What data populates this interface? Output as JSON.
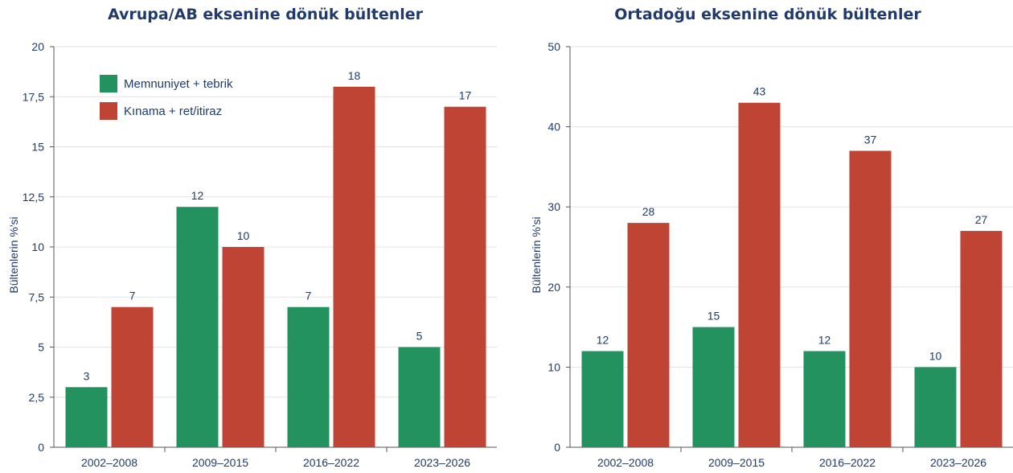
{
  "colors": {
    "green": "#24925e",
    "red": "#c04434",
    "text": "#1f3a6b"
  },
  "chart_data": [
    {
      "type": "bar",
      "title": "Avrupa/AB eksenine dönük bültenler",
      "ylabel": "Bültenlerin %'si",
      "xlabel": "",
      "ylim": [
        0,
        20
      ],
      "yticks": [
        0,
        2.5,
        5,
        7.5,
        10,
        12.5,
        15,
        17.5,
        20
      ],
      "ytick_labels": [
        "0",
        "2,5",
        "5",
        "7,5",
        "10",
        "12,5",
        "15",
        "17,5",
        "20"
      ],
      "categories": [
        "2002–2008",
        "2009–2015",
        "2016–2022",
        "2023–2026"
      ],
      "series": [
        {
          "name": "Memnuniyet + tebrik",
          "color": "#24925e",
          "values": [
            3,
            12,
            7,
            5
          ]
        },
        {
          "name": "Kınama + ret/itiraz",
          "color": "#c04434",
          "values": [
            7,
            10,
            18,
            17
          ]
        }
      ],
      "legend": "top-left",
      "grid": true
    },
    {
      "type": "bar",
      "title": "Ortadoğu eksenine dönük bültenler",
      "ylabel": "Bültenlerin %'si",
      "xlabel": "",
      "ylim": [
        0,
        50
      ],
      "yticks": [
        0,
        10,
        20,
        30,
        40,
        50
      ],
      "ytick_labels": [
        "0",
        "10",
        "20",
        "30",
        "40",
        "50"
      ],
      "categories": [
        "2002–2008",
        "2009–2015",
        "2016–2022",
        "2023–2026"
      ],
      "series": [
        {
          "color": "#24925e",
          "values": [
            12,
            15,
            12,
            10
          ]
        },
        {
          "color": "#c04434",
          "values": [
            28,
            43,
            37,
            27
          ]
        }
      ],
      "grid": true
    }
  ]
}
